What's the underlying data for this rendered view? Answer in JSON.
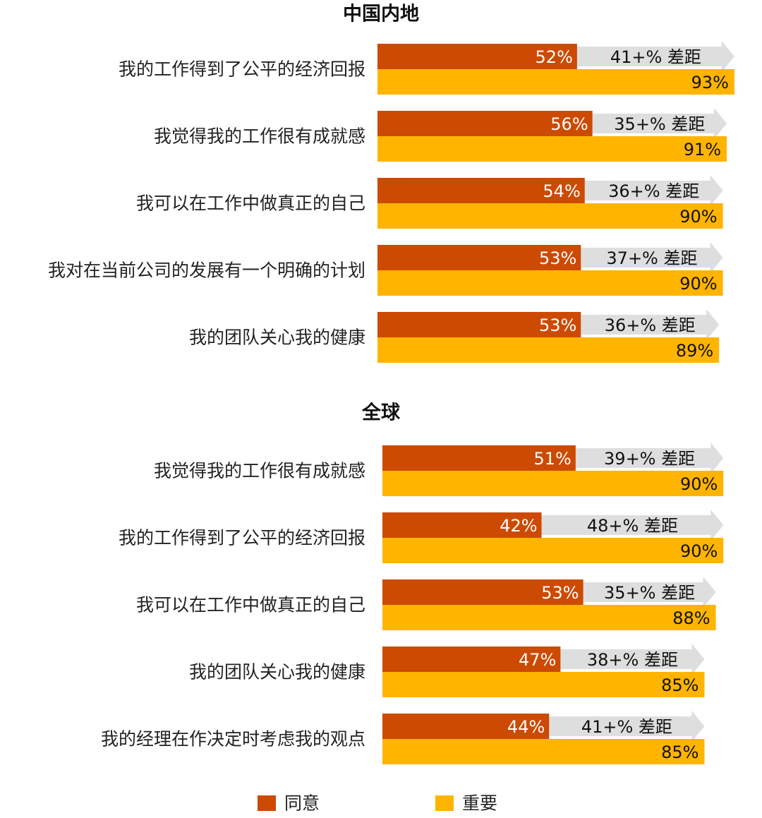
{
  "chart_data": [
    {
      "type": "bar",
      "orientation": "horizontal",
      "title": "中国内地",
      "categories": [
        "我的工作得到了公平的经济回报",
        "我觉得我的工作很有成就感",
        "我可以在工作中做真正的自己",
        "我对在当前公司的发展有一个明确的计划",
        "我的团队关心我的健康"
      ],
      "series": [
        {
          "name": "同意",
          "values": [
            52,
            56,
            54,
            53,
            53
          ],
          "labels": [
            "52%",
            "56%",
            "54%",
            "53%",
            "53%"
          ]
        },
        {
          "name": "重要",
          "values": [
            93,
            91,
            90,
            90,
            89
          ],
          "labels": [
            "93%",
            "91%",
            "90%",
            "90%",
            "89%"
          ]
        }
      ],
      "gap_labels": [
        "41+% 差距",
        "35+% 差距",
        "36+% 差距",
        "37+% 差距",
        "36+% 差距"
      ],
      "xlim": [
        0,
        100
      ]
    },
    {
      "type": "bar",
      "orientation": "horizontal",
      "title": "全球",
      "categories": [
        "我觉得我的工作很有成就感",
        "我的工作得到了公平的经济回报",
        "我可以在工作中做真正的自己",
        "我的团队关心我的健康",
        "我的经理在作决定时考虑我的观点"
      ],
      "series": [
        {
          "name": "同意",
          "values": [
            51,
            42,
            53,
            47,
            44
          ],
          "labels": [
            "51%",
            "42%",
            "53%",
            "47%",
            "44%"
          ]
        },
        {
          "name": "重要",
          "values": [
            90,
            90,
            88,
            85,
            85
          ],
          "labels": [
            "90%",
            "90%",
            "88%",
            "85%",
            "85%"
          ]
        }
      ],
      "gap_labels": [
        "39+% 差距",
        "48+% 差距",
        "35+% 差距",
        "38+% 差距",
        "41+% 差距"
      ],
      "xlim": [
        0,
        100
      ]
    }
  ],
  "legend": {
    "position": "bottom",
    "items": [
      {
        "label": "同意",
        "color": "#cc4a02"
      },
      {
        "label": "重要",
        "color": "#ffb400"
      }
    ]
  },
  "colors": {
    "agree": "#cc4a02",
    "important": "#ffb400",
    "gap_arrow": "#dedede"
  }
}
